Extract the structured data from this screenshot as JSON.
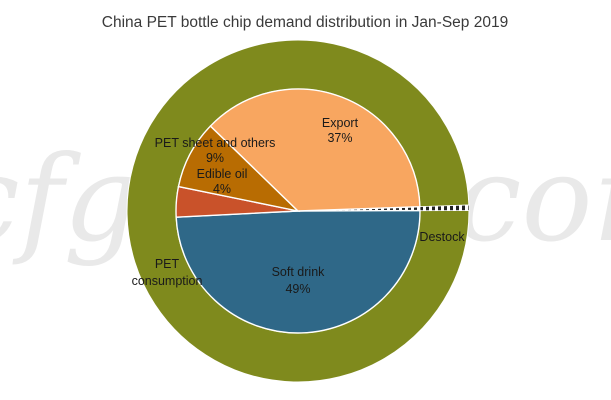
{
  "chart_data": {
    "type": "pie",
    "title": "China PET bottle chip demand distribution in Jan-Sep 2019",
    "watermark": "ccfgroup.com",
    "inner_pie": [
      {
        "name": "Export",
        "pct_label": "37%",
        "value": 37,
        "color": "#f8a660"
      },
      {
        "name": "Destock",
        "pct_label": "",
        "value": 0.5,
        "color": "#ffffff",
        "pattern": "dashed"
      },
      {
        "name": "Soft drink",
        "pct_label": "49%",
        "value": 49,
        "color": "#2f6888"
      },
      {
        "name": "Edible oil",
        "pct_label": "4%",
        "value": 4,
        "color": "#c9522a"
      },
      {
        "name": "PET sheet and others",
        "pct_label": "9%",
        "value": 9,
        "color": "#b86c02"
      }
    ],
    "outer_ring": [
      {
        "name": "PET consumption",
        "value": 99.5,
        "color": "#7f8a1d"
      },
      {
        "name": "Destock",
        "value": 0.5,
        "color": "#ffffff",
        "pattern": "dashed"
      }
    ]
  }
}
